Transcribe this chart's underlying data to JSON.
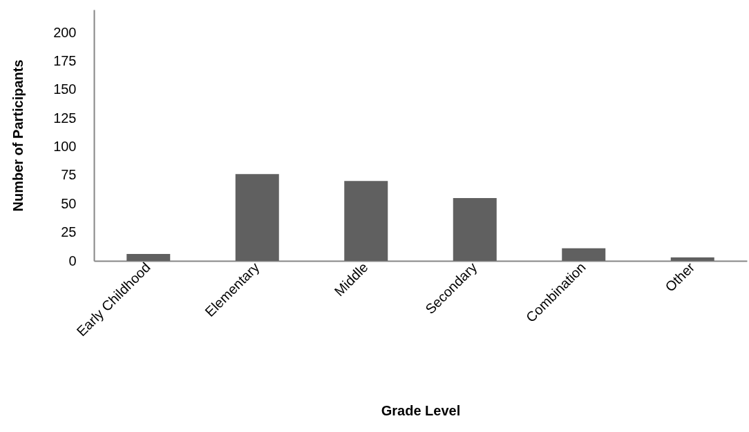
{
  "chart_data": {
    "type": "bar",
    "xlabel": "Grade Level",
    "ylabel": "Number of Participants",
    "categories": [
      "Early Childhood",
      "Elementary",
      "Middle",
      "Secondary",
      "Combination",
      "Other"
    ],
    "values": [
      6,
      76,
      70,
      55,
      11,
      3
    ],
    "color": "#606060",
    "ylim": [
      0,
      220
    ],
    "yticks": [
      0,
      25,
      50,
      75,
      100,
      125,
      150,
      175,
      200
    ],
    "grid": false
  }
}
